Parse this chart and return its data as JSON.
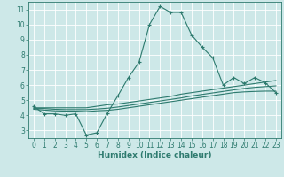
{
  "title": "",
  "xlabel": "Humidex (Indice chaleur)",
  "background_color": "#cde8e8",
  "grid_color": "#ffffff",
  "line_color": "#2d7a6e",
  "xlim": [
    -0.5,
    23.5
  ],
  "ylim": [
    2.5,
    11.5
  ],
  "xticks": [
    0,
    1,
    2,
    3,
    4,
    5,
    6,
    7,
    8,
    9,
    10,
    11,
    12,
    13,
    14,
    15,
    16,
    17,
    18,
    19,
    20,
    21,
    22,
    23
  ],
  "yticks": [
    3,
    4,
    5,
    6,
    7,
    8,
    9,
    10,
    11
  ],
  "line1_x": [
    0,
    1,
    2,
    3,
    4,
    5,
    6,
    7,
    8,
    9,
    10,
    11,
    12,
    13,
    14,
    15,
    16,
    17,
    18,
    19,
    20,
    21,
    22,
    23
  ],
  "line1_y": [
    4.6,
    4.1,
    4.1,
    4.0,
    4.1,
    2.7,
    2.85,
    4.15,
    5.3,
    6.5,
    7.5,
    10.0,
    11.2,
    10.8,
    10.8,
    9.3,
    8.5,
    7.8,
    6.0,
    6.5,
    6.1,
    6.5,
    6.15,
    5.5
  ],
  "line2_x": [
    0,
    1,
    2,
    3,
    4,
    5,
    6,
    7,
    8,
    9,
    10,
    11,
    12,
    13,
    14,
    15,
    16,
    17,
    18,
    19,
    20,
    21,
    22,
    23
  ],
  "line2_y": [
    4.5,
    4.5,
    4.5,
    4.5,
    4.5,
    4.5,
    4.6,
    4.7,
    4.75,
    4.85,
    4.95,
    5.05,
    5.15,
    5.25,
    5.4,
    5.5,
    5.6,
    5.7,
    5.8,
    5.9,
    6.0,
    6.1,
    6.2,
    6.3
  ],
  "line3_x": [
    0,
    1,
    2,
    3,
    4,
    5,
    6,
    7,
    8,
    9,
    10,
    11,
    12,
    13,
    14,
    15,
    16,
    17,
    18,
    19,
    20,
    21,
    22,
    23
  ],
  "line3_y": [
    4.45,
    4.45,
    4.4,
    4.38,
    4.38,
    4.38,
    4.42,
    4.47,
    4.55,
    4.65,
    4.75,
    4.85,
    4.95,
    5.05,
    5.15,
    5.28,
    5.38,
    5.48,
    5.58,
    5.68,
    5.78,
    5.85,
    5.9,
    5.95
  ],
  "line4_x": [
    0,
    1,
    2,
    3,
    4,
    5,
    6,
    7,
    8,
    9,
    10,
    11,
    12,
    13,
    14,
    15,
    16,
    17,
    18,
    19,
    20,
    21,
    22,
    23
  ],
  "line4_y": [
    4.4,
    4.35,
    4.3,
    4.28,
    4.28,
    4.25,
    4.3,
    4.33,
    4.4,
    4.5,
    4.6,
    4.7,
    4.8,
    4.9,
    5.0,
    5.1,
    5.2,
    5.3,
    5.4,
    5.5,
    5.55,
    5.58,
    5.6,
    5.6
  ]
}
